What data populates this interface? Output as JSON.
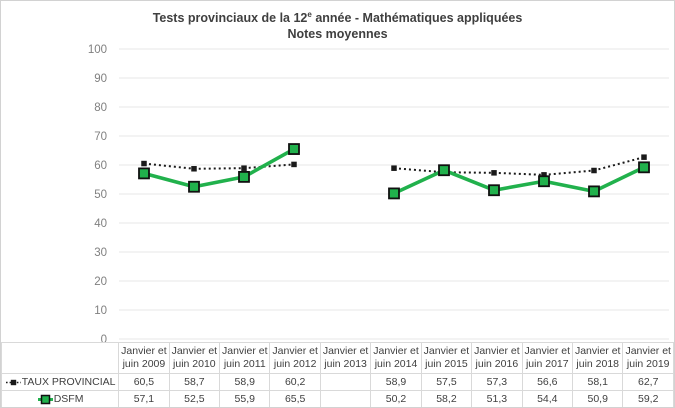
{
  "widget": {
    "title": {
      "prefix": "Tests provinciaux de la 12",
      "superscript": "e",
      "suffix": " année - Mathématiques appliquées",
      "line2": "Notes moyennes"
    }
  },
  "chart_data": {
    "type": "line",
    "title": "Tests provinciaux de la 12e année - Mathématiques appliquées - Notes moyennes",
    "categories": [
      "Janvier et juin 2009",
      "Janvier et juin 2010",
      "Janvier et juin 2011",
      "Janvier et juin 2012",
      "Janvier et juin 2013",
      "Janvier et juin 2014",
      "Janvier et juin 2015",
      "Janvier et juin 2016",
      "Janvier et juin 2017",
      "Janvier et juin 2018",
      "Janvier et juin 2019"
    ],
    "series": [
      {
        "name": "TAUX PROVINCIAL",
        "color": "#1a1a1a",
        "line_style": "dotted",
        "marker": "small-black-square",
        "values": [
          60.5,
          58.7,
          58.9,
          60.2,
          null,
          58.9,
          57.5,
          57.3,
          56.6,
          58.1,
          62.7
        ]
      },
      {
        "name": "DSFM",
        "color": "#21b14c",
        "line_style": "solid",
        "marker": "green-square-black-border",
        "values": [
          57.1,
          52.5,
          55.9,
          65.5,
          null,
          50.2,
          58.2,
          51.3,
          54.4,
          50.9,
          59.2
        ]
      }
    ],
    "xlabel": "",
    "ylabel": "",
    "ylim": [
      0,
      100
    ],
    "ytick_step": 10,
    "grid": true,
    "legend_position": "data-table-left"
  },
  "table": {
    "column_headers": [
      [
        "Janvier et",
        "juin 2009"
      ],
      [
        "Janvier et",
        "juin 2010"
      ],
      [
        "Janvier et",
        "juin 2011"
      ],
      [
        "Janvier et",
        "juin 2012"
      ],
      [
        "Janvier et",
        "juin 2013"
      ],
      [
        "Janvier et",
        "juin 2014"
      ],
      [
        "Janvier et",
        "juin 2015"
      ],
      [
        "Janvier et",
        "juin 2016"
      ],
      [
        "Janvier et",
        "juin 2017"
      ],
      [
        "Janvier et",
        "juin 2018"
      ],
      [
        "Janvier et",
        "juin 2019"
      ]
    ],
    "rows": [
      {
        "label": "TAUX PROVINCIAL",
        "values": [
          "60,5",
          "58,7",
          "58,9",
          "60,2",
          "",
          "58,9",
          "57,5",
          "57,3",
          "56,6",
          "58,1",
          "62,7"
        ]
      },
      {
        "label": "DSFM",
        "values": [
          "57,1",
          "52,5",
          "55,9",
          "65,5",
          "",
          "50,2",
          "58,2",
          "51,3",
          "54,4",
          "50,9",
          "59,2"
        ]
      }
    ]
  },
  "colors": {
    "taux_provincial": "#1a1a1a",
    "dsfm_green": "#21b14c",
    "gridline": "#e7e7e7",
    "axis_label": "#808080",
    "table_border": "#d9d9d9",
    "text": "#404040",
    "title_text": "#3f3f3f"
  }
}
